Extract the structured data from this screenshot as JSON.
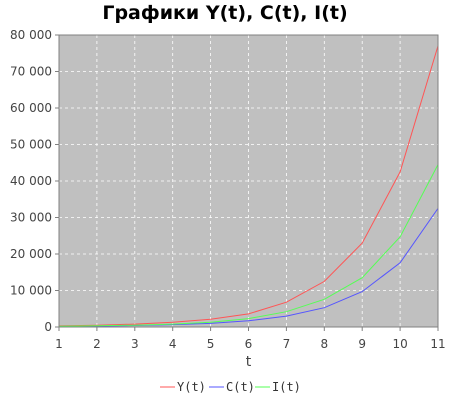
{
  "chart_data": {
    "type": "line",
    "title": "Графики Y(t), C(t), I(t)",
    "xlabel": "t",
    "ylabel": "",
    "x": [
      1,
      2,
      3,
      4,
      5,
      6,
      7,
      8,
      9,
      10,
      11
    ],
    "xlim": [
      1,
      11
    ],
    "ylim": [
      0,
      80000
    ],
    "x_ticks": [
      "1",
      "2",
      "3",
      "4",
      "5",
      "6",
      "7",
      "8",
      "9",
      "10",
      "11"
    ],
    "y_ticks": [
      0,
      10000,
      20000,
      30000,
      40000,
      50000,
      60000,
      70000,
      80000
    ],
    "y_tick_labels": [
      "0",
      "10 000",
      "20 000",
      "30 000",
      "40 000",
      "50 000",
      "60 000",
      "70 000",
      "80 000"
    ],
    "grid": true,
    "legend_position": "bottom",
    "background": "#c0c0c0",
    "series": [
      {
        "name": "Y(t)",
        "color": "#ff5555",
        "values": [
          300,
          500,
          800,
          1300,
          2100,
          3600,
          6800,
          12500,
          23000,
          42500,
          77000
        ]
      },
      {
        "name": "C(t)",
        "color": "#5555ff",
        "values": [
          150,
          250,
          400,
          650,
          1000,
          1700,
          3000,
          5300,
          9700,
          17600,
          32500
        ]
      },
      {
        "name": "I(t)",
        "color": "#55ff55",
        "values": [
          200,
          320,
          500,
          800,
          1300,
          2300,
          4200,
          7600,
          13500,
          24700,
          44500
        ]
      }
    ]
  }
}
